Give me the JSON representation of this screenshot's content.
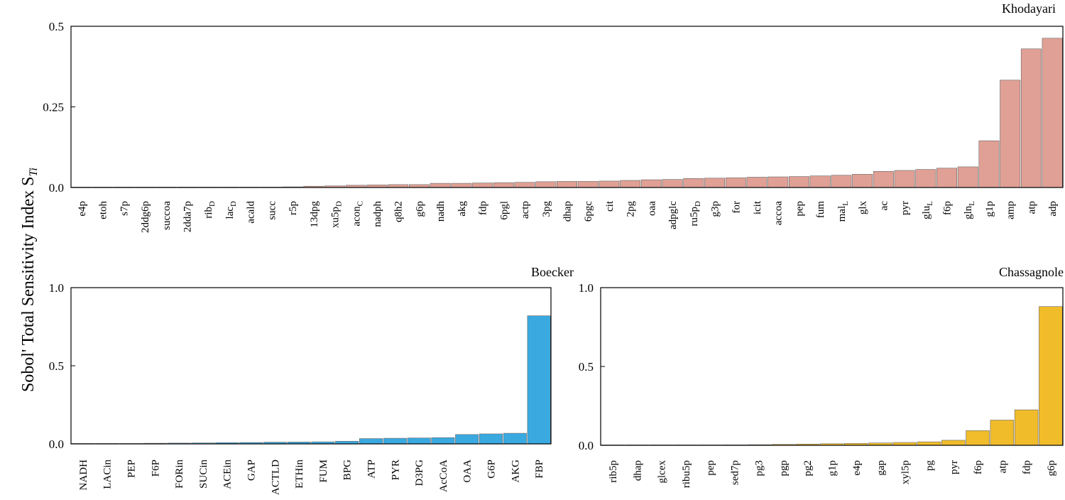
{
  "figure": {
    "ylabel": "Sobol' Total Sensitivity Index S",
    "ylabel_sub": "Ti"
  },
  "chart_data": [
    {
      "type": "bar",
      "title": "Khodayari",
      "color": "#e0a095",
      "ylim": [
        0,
        0.5
      ],
      "yticks": [
        0,
        0.25,
        0.5
      ],
      "ytick_labels": [
        "0.0",
        "0.25",
        "0.5"
      ],
      "categories": [
        "e4p",
        "etoh",
        "s7p",
        "2ddg6p",
        "succoa",
        "2dda7p",
        "rib_D",
        "lac_D",
        "acald",
        "succ",
        "r5p",
        "13dpg",
        "xu5p_D",
        "acon_C",
        "nadph",
        "q8h2",
        "g6p",
        "nadh",
        "akg",
        "fdp",
        "6pgl",
        "actp",
        "3pg",
        "dhap",
        "6pgc",
        "cit",
        "2pg",
        "oaa",
        "adpglc",
        "ru5p_D",
        "g3p",
        "for",
        "icit",
        "accoa",
        "pep",
        "fum",
        "mal_L",
        "glx",
        "ac",
        "pyr",
        "glu_L",
        "f6p",
        "gln_L",
        "g1p",
        "amp",
        "atp",
        "adp"
      ],
      "values": [
        0.0005,
        0.0005,
        0.0005,
        0.0005,
        0.0005,
        0.0005,
        0.0005,
        0.0005,
        0.0005,
        0.001,
        0.002,
        0.004,
        0.005,
        0.007,
        0.008,
        0.009,
        0.009,
        0.013,
        0.013,
        0.014,
        0.015,
        0.016,
        0.018,
        0.019,
        0.019,
        0.02,
        0.022,
        0.024,
        0.025,
        0.028,
        0.029,
        0.03,
        0.032,
        0.033,
        0.034,
        0.036,
        0.038,
        0.041,
        0.05,
        0.053,
        0.056,
        0.06,
        0.064,
        0.145,
        0.333,
        0.43,
        0.463
      ]
    },
    {
      "type": "bar",
      "title": "Boecker",
      "color": "#3aa9e0",
      "ylim": [
        0,
        1.0
      ],
      "yticks": [
        0,
        0.5,
        1.0
      ],
      "ytick_labels": [
        "0.0",
        "0.5",
        "1.0"
      ],
      "categories": [
        "NADH",
        "LACin",
        "PEP",
        "F6P",
        "FORin",
        "SUCin",
        "ACEin",
        "GAP",
        "ACTLD",
        "ETHin",
        "FUM",
        "BPG",
        "ATP",
        "PYR",
        "D3PG",
        "AcCoA",
        "OAA",
        "G6P",
        "AKG",
        "FBP"
      ],
      "values": [
        0.0,
        0.0,
        0.001,
        0.004,
        0.005,
        0.006,
        0.008,
        0.009,
        0.011,
        0.012,
        0.013,
        0.017,
        0.034,
        0.036,
        0.038,
        0.04,
        0.06,
        0.064,
        0.068,
        0.82
      ]
    },
    {
      "type": "bar",
      "title": "Chassagnole",
      "color": "#f0bc2a",
      "ylim": [
        0,
        1.0
      ],
      "yticks": [
        0,
        0.5,
        1.0
      ],
      "ytick_labels": [
        "0.0",
        "0.5",
        "1.0"
      ],
      "categories": [
        "rib5p",
        "dhap",
        "glcex",
        "ribu5p",
        "pep",
        "sed7p",
        "pg3",
        "pgp",
        "pg2",
        "g1p",
        "e4p",
        "gap",
        "xyl5p",
        "pg",
        "pyr",
        "f6p",
        "atp",
        "fdp",
        "g6p"
      ],
      "values": [
        0.0,
        0.0,
        0.0,
        0.001,
        0.002,
        0.003,
        0.004,
        0.006,
        0.008,
        0.01,
        0.012,
        0.015,
        0.018,
        0.022,
        0.032,
        0.093,
        0.16,
        0.225,
        0.88
      ]
    }
  ]
}
